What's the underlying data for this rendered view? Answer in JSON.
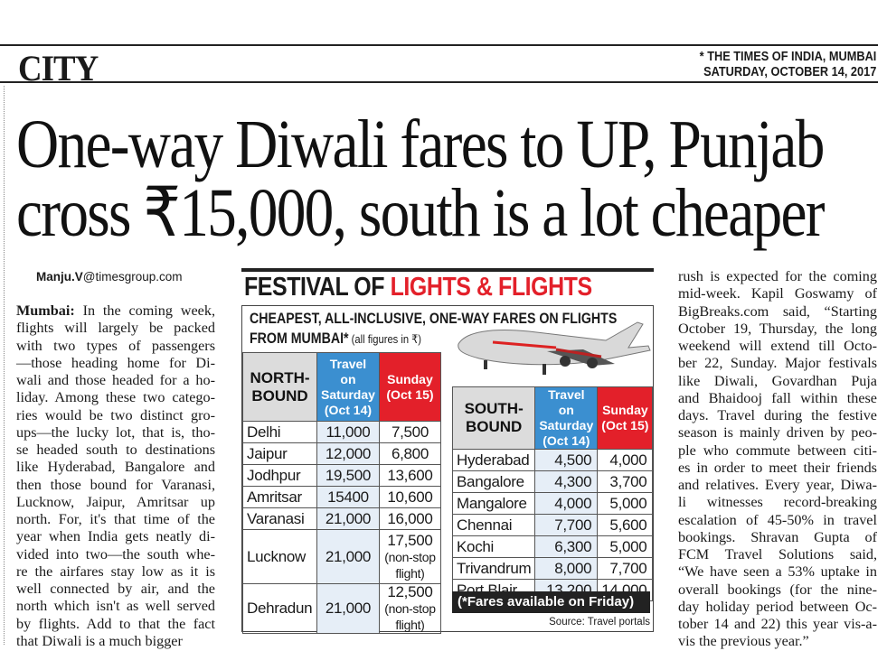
{
  "section": "CITY",
  "masthead": {
    "paper": "* THE TIMES OF INDIA, MUMBAI",
    "date": "SATURDAY, OCTOBER 14, 2017"
  },
  "headline": {
    "line1": "One-way Diwali fares to UP, Punjab",
    "line2": "cross ₹15,000, south is a lot cheaper"
  },
  "byline": {
    "name": "Manju.V",
    "domain": "@timesgroup.com"
  },
  "left_column": {
    "dateline": "Mumbai:",
    "lines": [
      "In the coming week,",
      "flights will largely be packed",
      "with two types of passengers",
      "—those heading home for Di-",
      "wali and those headed for a ho-",
      "liday. Among these two catego-",
      "ries would be two distinct gro-",
      "ups—the lucky lot, that is, tho-",
      "se headed south to destinations",
      "like Hyderabad, Bangalore and",
      "then those bound for Varanasi,",
      "Lucknow, Jaipur, Amritsar up",
      "north. For, it's that time of the",
      "year when India gets neatly di-",
      "vided into two—the south whe-",
      "re the airfares stay low as it is",
      "well connected by air, and the",
      "north which isn't as well served",
      "by flights. Add to that the fact",
      "that Diwali is a much bigger"
    ]
  },
  "right_column": {
    "lines": [
      "rush is expected for the coming",
      "mid-week. Kapil Goswamy of",
      "BigBreaks.com said, “Starting",
      "October 19, Thursday, the long",
      "weekend will extend till Octo-",
      "ber 22, Sunday. Major festivals",
      "like Diwali, Govardhan Puja",
      "and Bhaidooj fall within these",
      "days. Travel during the festive",
      "season is mainly driven by peo-",
      "ple who commute between citi-",
      "es in order to meet their friends",
      "and relatives. Every year, Diwa-",
      "li witnesses record-breaking",
      "escalation of 45-50% in travel",
      "bookings. Shravan Gupta of",
      "FCM Travel Solutions said,",
      "“We have seen a 53% uptake in",
      "overall bookings (for the nine-",
      "day holiday period between Oc-",
      "tober 14 and 22) this year vis-a-",
      "vis the previous year.”"
    ]
  },
  "graphic": {
    "title_black": "FESTIVAL OF ",
    "title_red": "LIGHTS & FLIGHTS",
    "subtitle1": "CHEAPEST, ALL-INCLUSIVE, ONE-WAY FARES ON FLIGHTS",
    "subtitle2": "FROM MUMBAI*",
    "subtitle_note": " (all figures in ₹)",
    "colors": {
      "red": "#e3202a",
      "blue": "#3b8fd0",
      "header_grey": "#dcdcdc"
    },
    "north": {
      "headers": [
        "NORTH-BOUND",
        "Travel on Saturday (Oct 14)",
        "Sunday (Oct 15)"
      ],
      "rows": [
        [
          "Delhi",
          "11,000",
          "7,500"
        ],
        [
          "Jaipur",
          "12,000",
          "6,800"
        ],
        [
          "Jodhpur",
          "19,500",
          "13,600"
        ],
        [
          "Amritsar",
          "15400",
          "10,600"
        ],
        [
          "Varanasi",
          "21,000",
          "16,000"
        ],
        [
          "Lucknow",
          "21,000",
          "17,500",
          "(non-stop flight)"
        ],
        [
          "Dehradun",
          "21,000",
          "12,500",
          "(non-stop flight)"
        ]
      ]
    },
    "south": {
      "headers": [
        "SOUTH-BOUND",
        "Travel on Saturday (Oct 14)",
        "Sunday (Oct 15)"
      ],
      "rows": [
        [
          "Hyderabad",
          "4,500",
          "4,000"
        ],
        [
          "Bangalore",
          "4,300",
          "3,700"
        ],
        [
          "Mangalore",
          "4,000",
          "5,000"
        ],
        [
          "Chennai",
          "7,700",
          "5,600"
        ],
        [
          "Kochi",
          "6,300",
          "5,000"
        ],
        [
          "Trivandrum",
          "8,000",
          "7,700"
        ],
        [
          "Port Blair",
          "13,200",
          "14,000"
        ]
      ]
    },
    "footnote": "(*Fares available on Friday)",
    "source": "Source: Travel portals",
    "image": "airplane-photo"
  }
}
